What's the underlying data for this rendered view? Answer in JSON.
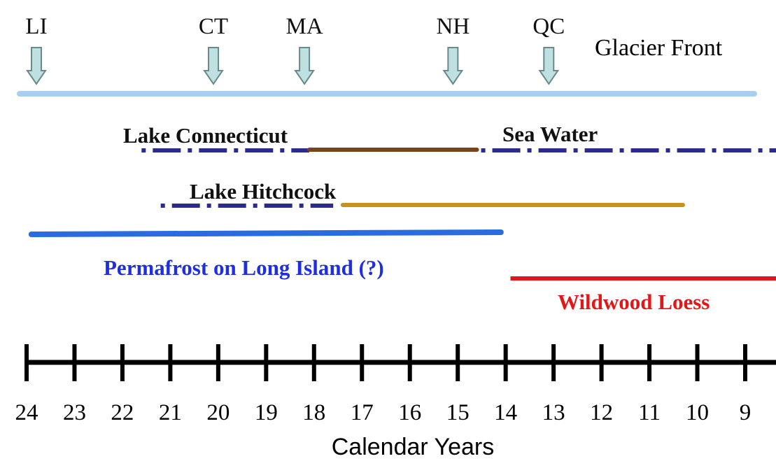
{
  "markers": [
    {
      "label": "LI",
      "year": 24
    },
    {
      "label": "CT",
      "year": 20.1
    },
    {
      "label": "MA",
      "year": 18.2
    },
    {
      "label": "NH",
      "year": 15.1
    },
    {
      "label": "QC",
      "year": 13.1
    }
  ],
  "glacier_front_label": "Glacier Front",
  "periods": {
    "lake_connecticut": {
      "label": "Lake Connecticut",
      "start": 21.6,
      "end": 18.1
    },
    "brown_segment": {
      "start": 18.1,
      "end": 14.6
    },
    "sea_water": {
      "label": "Sea Water",
      "start": 14.6,
      "end": 8.4
    },
    "lake_hitchcock": {
      "label": "Lake Hitchcock",
      "start": 21.2,
      "end": 17.6
    },
    "gold_segment": {
      "start": 17.4,
      "end": 10.3
    },
    "permafrost": {
      "label": "Permafrost on Long Island (?)",
      "start": 23.9,
      "end": 14.1
    },
    "wildwood_loess": {
      "label": "Wildwood Loess",
      "start": 13.9,
      "end": 8.4
    }
  },
  "axis": {
    "title": "Calendar Years",
    "ticks": [
      "24",
      "23",
      "22",
      "21",
      "20",
      "19",
      "18",
      "17",
      "16",
      "15",
      "14",
      "13",
      "12",
      "11",
      "10",
      "9"
    ],
    "domain": [
      24,
      9
    ]
  },
  "colors": {
    "glacier": "#a9cff0",
    "arrow_fill": "#bfe0e0",
    "arrow_stroke": "#6a8a8a",
    "dash": "#2b2b8f",
    "brown": "#7a4418",
    "gold": "#c8921c",
    "permafrost": "#2a6be0",
    "permafrost_text": "#1f2fe0",
    "loess": "#e01818",
    "axis": "#000000"
  }
}
